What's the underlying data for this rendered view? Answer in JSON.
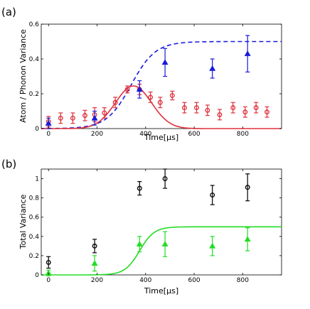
{
  "chart_data": [
    {
      "type": "scatter",
      "panel_label": "(a)",
      "xlabel": "Time[μs]",
      "ylabel": "Atom / Phonon Variance",
      "xlim": [
        -30,
        960
      ],
      "ylim": [
        0,
        0.6
      ],
      "x_ticks": [
        "0",
        "200",
        "400",
        "600",
        "800"
      ],
      "y_ticks": [
        "0",
        "0.2",
        "0.4",
        "0.6"
      ],
      "grid": false,
      "series": [
        {
          "marker": "circle",
          "color": "#e0303c",
          "x": [
            0,
            50,
            100,
            150,
            190,
            230,
            275,
            325,
            375,
            420,
            460,
            510,
            560,
            610,
            655,
            705,
            760,
            810,
            855,
            900
          ],
          "y": [
            0.04,
            0.06,
            0.06,
            0.075,
            0.08,
            0.09,
            0.15,
            0.225,
            0.225,
            0.18,
            0.15,
            0.19,
            0.12,
            0.12,
            0.105,
            0.08,
            0.12,
            0.095,
            0.12,
            0.095
          ],
          "err": [
            0.03,
            0.03,
            0.03,
            0.03,
            0.04,
            0.03,
            0.03,
            0.02,
            0.03,
            0.03,
            0.03,
            0.025,
            0.03,
            0.03,
            0.03,
            0.03,
            0.03,
            0.03,
            0.03,
            0.03
          ]
        },
        {
          "marker": "triangle",
          "color": "#1a1adc",
          "x": [
            0,
            190,
            375,
            480,
            675,
            820
          ],
          "y": [
            0.03,
            0.06,
            0.225,
            0.38,
            0.345,
            0.43
          ],
          "err": [
            0.03,
            0.04,
            0.05,
            0.08,
            0.055,
            0.105
          ]
        }
      ],
      "curves": [
        {
          "style": "dashed",
          "color": "#1a1adc",
          "type": "logistic",
          "amplitude": 0.5,
          "center": 340,
          "width": 50
        },
        {
          "style": "solid",
          "color": "#e0303c",
          "type": "gaussian",
          "amplitude": 0.245,
          "center": 350,
          "width": 105
        }
      ]
    },
    {
      "type": "scatter",
      "panel_label": "(b)",
      "xlabel": "Time[μs]",
      "ylabel": "Total Variance",
      "xlim": [
        -30,
        960
      ],
      "ylim": [
        0,
        1.1
      ],
      "x_ticks": [
        "0",
        "200",
        "400",
        "600",
        "800"
      ],
      "y_ticks": [
        "0",
        "0.2",
        "0.4",
        "0.6",
        "0.8",
        "1"
      ],
      "grid": false,
      "series": [
        {
          "marker": "circle",
          "color": "#000000",
          "x": [
            0,
            190,
            375,
            480,
            675,
            820
          ],
          "y": [
            0.13,
            0.3,
            0.9,
            1.0,
            0.83,
            0.91
          ],
          "err": [
            0.06,
            0.07,
            0.07,
            0.1,
            0.1,
            0.14
          ]
        },
        {
          "marker": "triangle",
          "color": "#22dd22",
          "x": [
            0,
            190,
            375,
            480,
            675,
            820
          ],
          "y": [
            0.02,
            0.12,
            0.32,
            0.32,
            0.3,
            0.37
          ],
          "err": [
            0.03,
            0.08,
            0.08,
            0.13,
            0.1,
            0.12
          ]
        }
      ],
      "curves": [
        {
          "style": "solid",
          "color": "#22dd22",
          "type": "logistic",
          "amplitude": 0.5,
          "center": 375,
          "width": 30
        }
      ]
    }
  ]
}
